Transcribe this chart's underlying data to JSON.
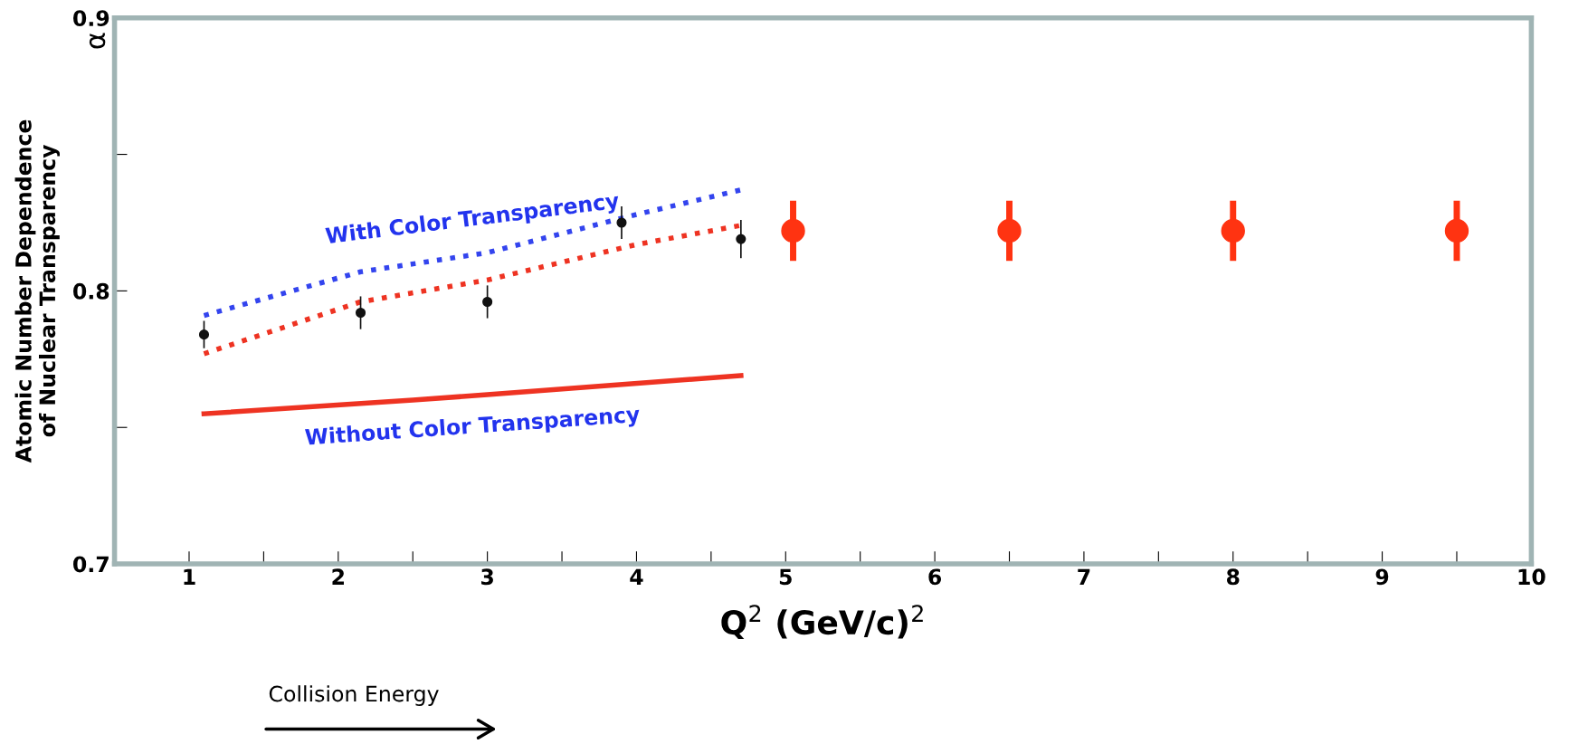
{
  "chart_data": {
    "type": "line",
    "xlabel": "Q$^{2}$ (GeV/c)$^{2}$",
    "ylabel": "Atomic Number Dependence\nof Nuclear Transparency",
    "xlim": [
      0.5,
      10
    ],
    "ylim": [
      0.7,
      0.9
    ],
    "xticks": [
      1,
      {
        "value": 1.5,
        "label": null
      },
      2,
      {
        "value": 2.5,
        "label": null
      },
      3,
      {
        "value": 3.5,
        "label": null
      },
      4,
      {
        "value": 4.5,
        "label": null
      },
      5,
      {
        "value": 5.5,
        "label": null
      },
      6,
      {
        "value": 6.5,
        "label": null
      },
      7,
      {
        "value": 7.5,
        "label": null
      },
      8,
      {
        "value": 8.5,
        "label": null
      },
      9,
      {
        "value": 9.5,
        "label": null
      },
      10
    ],
    "yticks": [
      0.7,
      {
        "value": 0.75,
        "label": null
      },
      0.8,
      {
        "value": 0.85,
        "label": null
      },
      0.9
    ],
    "grid": false,
    "legend": false,
    "series": [
      {
        "name": "With Color Transparency",
        "line_style": "dotted",
        "color": "#3344ee",
        "x": [
          1.1,
          2.15,
          3.0,
          4.0,
          4.7
        ],
        "values": [
          0.791,
          0.807,
          0.814,
          0.828,
          0.837
        ]
      },
      {
        "line_style": "dotted",
        "color": "#ee3322",
        "x": [
          1.1,
          2.15,
          3.0,
          4.0,
          4.7
        ],
        "values": [
          0.777,
          0.796,
          0.804,
          0.817,
          0.824
        ]
      },
      {
        "name": "Without Color Transparency",
        "line_style": "solid",
        "color": "#ee3322",
        "x": [
          1.1,
          2.5,
          3.0,
          4.7
        ],
        "values": [
          0.755,
          0.76,
          0.762,
          0.769
        ]
      },
      {
        "type": "scatter",
        "marker": "circle",
        "color": "#111111",
        "x": [
          1.1,
          2.15,
          3.0,
          3.9,
          4.7
        ],
        "values": [
          0.784,
          0.792,
          0.796,
          0.825,
          0.819
        ],
        "errors": [
          0.005,
          0.006,
          0.006,
          0.006,
          0.007
        ]
      },
      {
        "type": "scatter",
        "marker": "circle",
        "color": "#ff3311",
        "x": [
          5.05,
          6.5,
          8.0,
          9.5
        ],
        "values": [
          0.822,
          0.822,
          0.822,
          0.822
        ],
        "errors": [
          0.011,
          0.011,
          0.011,
          0.011
        ]
      }
    ],
    "annotations": [
      "α",
      "Collision Energy"
    ]
  }
}
